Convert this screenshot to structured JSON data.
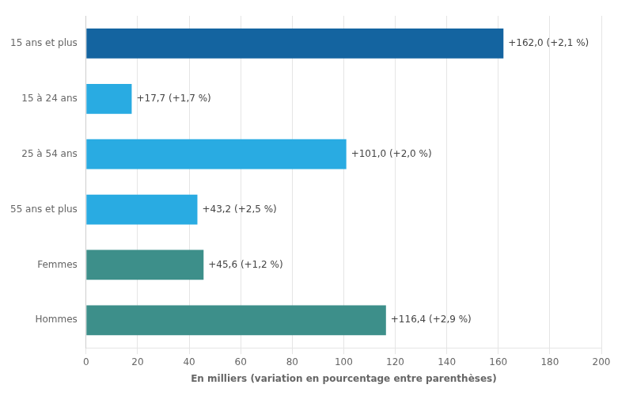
{
  "chart_data": {
    "type": "bar",
    "orientation": "horizontal",
    "categories": [
      "15 ans et plus",
      "15 à 24 ans",
      "25 à 54 ans",
      "55 ans et plus",
      "Femmes",
      "Hommes"
    ],
    "values": [
      162.0,
      17.7,
      101.0,
      43.2,
      45.6,
      116.4
    ],
    "value_labels": [
      "+162,0 (+2,1 %)",
      "+17,7 (+1,7 %)",
      "+101,0 (+2,0 %)",
      "+43,2 (+2,5 %)",
      "+45,6 (+1,2 %)",
      "+116,4 (+2,9 %)"
    ],
    "colors": [
      "#1464a0",
      "#29abe2",
      "#29abe2",
      "#29abe2",
      "#3d8f8a",
      "#3d8f8a"
    ],
    "xlabel": "En milliers (variation en pourcentage entre parenthèses)",
    "xlim": [
      0,
      200
    ],
    "xticks": [
      0,
      20,
      40,
      60,
      80,
      100,
      120,
      140,
      160,
      180,
      200
    ],
    "grid": true,
    "data_labels": true
  }
}
